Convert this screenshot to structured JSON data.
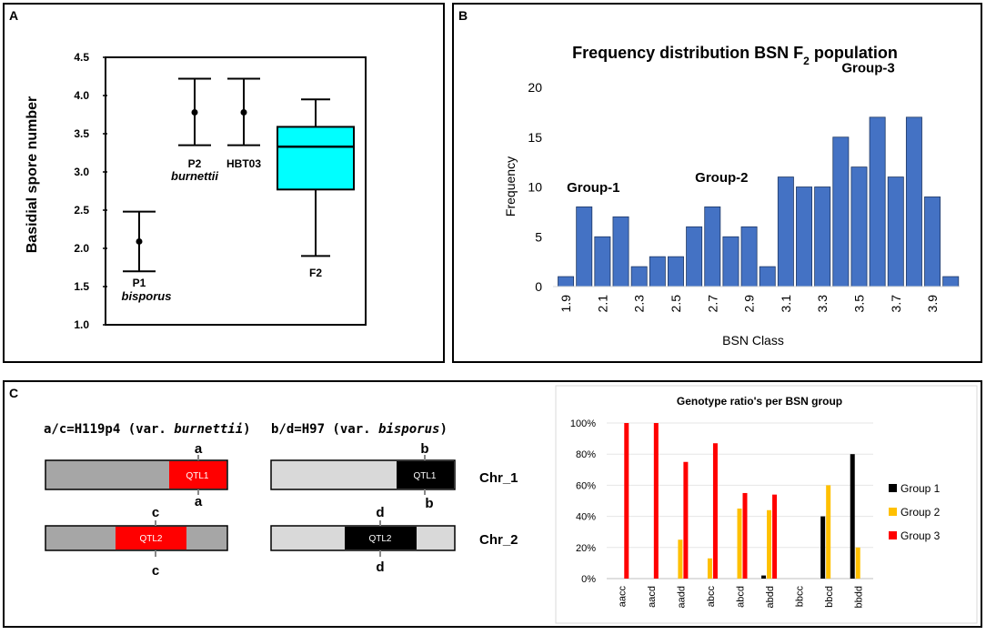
{
  "colors": {
    "blue_bar": "#4472C4",
    "cyan_box": "#00FFFF",
    "red": "#FF0000",
    "orange": "#FFC000",
    "black": "#000000",
    "light_gray": "#D9D9D9",
    "mid_gray": "#A6A6A6",
    "frame": "#000000"
  },
  "panels": {
    "a": "A",
    "b": "B",
    "c": "C"
  },
  "chart_data": [
    {
      "id": "A",
      "type": "box",
      "ylabel": "Basidial spore number",
      "ylim": [
        1.0,
        4.5
      ],
      "yticks": [
        "1.0",
        "1.5",
        "2.0",
        "2.5",
        "3.0",
        "3.5",
        "4.0",
        "4.5"
      ],
      "groups": [
        {
          "name": "P1",
          "subname": "bisporus",
          "kind": "errorbar",
          "mean": 2.09,
          "low": 1.7,
          "high": 2.48
        },
        {
          "name": "P2",
          "subname": "burnettii",
          "kind": "errorbar",
          "mean": 3.78,
          "low": 3.35,
          "high": 4.22
        },
        {
          "name": "HBT03",
          "subname": "",
          "kind": "errorbar",
          "mean": 3.78,
          "low": 3.35,
          "high": 4.22
        },
        {
          "name": "F2",
          "subname": "",
          "kind": "box",
          "min": 1.9,
          "q1": 2.77,
          "median": 3.33,
          "q3": 3.59,
          "max": 3.95
        }
      ]
    },
    {
      "id": "B",
      "type": "bar",
      "title_main": "Frequency distribution BSN F",
      "title_sub": "2",
      "title_tail": " population",
      "xlabel": "BSN Class",
      "ylabel": "Frequency",
      "ylim": [
        0,
        20
      ],
      "yticks": [
        "0",
        "5",
        "10",
        "15",
        "20"
      ],
      "categories": [
        "1.9",
        "2",
        "2.1",
        "2.2",
        "2.3",
        "2.4",
        "2.5",
        "2.6",
        "2.7",
        "2.8",
        "2.9",
        "3",
        "3.1",
        "3.2",
        "3.3",
        "3.4",
        "3.5",
        "3.6",
        "3.7",
        "3.8",
        "3.9",
        "4"
      ],
      "xtick_labels": [
        "1.9",
        "2.1",
        "2.3",
        "2.5",
        "2.7",
        "2.9",
        "3.1",
        "3.3",
        "3.5",
        "3.7",
        "3.9"
      ],
      "values": [
        1,
        8,
        5,
        7,
        2,
        3,
        3,
        6,
        8,
        5,
        6,
        2,
        11,
        10,
        10,
        15,
        12,
        17,
        11,
        17,
        9,
        1
      ],
      "annotations": [
        {
          "text": "Group-1",
          "near_category": "2.05",
          "value": 9.5
        },
        {
          "text": "Group-2",
          "near_category": "2.75",
          "value": 10.5
        },
        {
          "text": "Group-3",
          "near_category": "3.55",
          "value": 21.5
        }
      ]
    },
    {
      "id": "C-chart",
      "type": "bar",
      "title": "Genotype ratio's per BSN group",
      "ylim": [
        0,
        100
      ],
      "yticks": [
        "0%",
        "20%",
        "40%",
        "60%",
        "80%",
        "100%"
      ],
      "categories": [
        "aacc",
        "aacd",
        "aadd",
        "abcc",
        "abcd",
        "abdd",
        "bbcc",
        "bbcd",
        "bbdd"
      ],
      "series": [
        {
          "name": "Group 1",
          "values": [
            0,
            0,
            0,
            0,
            0,
            2,
            0,
            40,
            80
          ]
        },
        {
          "name": "Group 2",
          "values": [
            0,
            0,
            25,
            13,
            45,
            44,
            0,
            60,
            20
          ]
        },
        {
          "name": "Group 3",
          "values": [
            100,
            100,
            75,
            87,
            55,
            54,
            0,
            0,
            0
          ]
        }
      ],
      "legend_position": "right"
    }
  ],
  "chromosomes": {
    "left_title_pre": "a/c=H119p4 (var. ",
    "left_title_italic": "burnettii",
    "left_title_post": ")",
    "right_title_pre": "b/d=H97 (var. ",
    "right_title_italic": "bisporus",
    "right_title_post": ")",
    "chr1_label": "Chr_1",
    "chr2_label": "Chr_2",
    "qtl1": "QTL1",
    "qtl2": "QTL2",
    "allele_a": "a",
    "allele_b": "b",
    "allele_c": "c",
    "allele_d": "d"
  }
}
